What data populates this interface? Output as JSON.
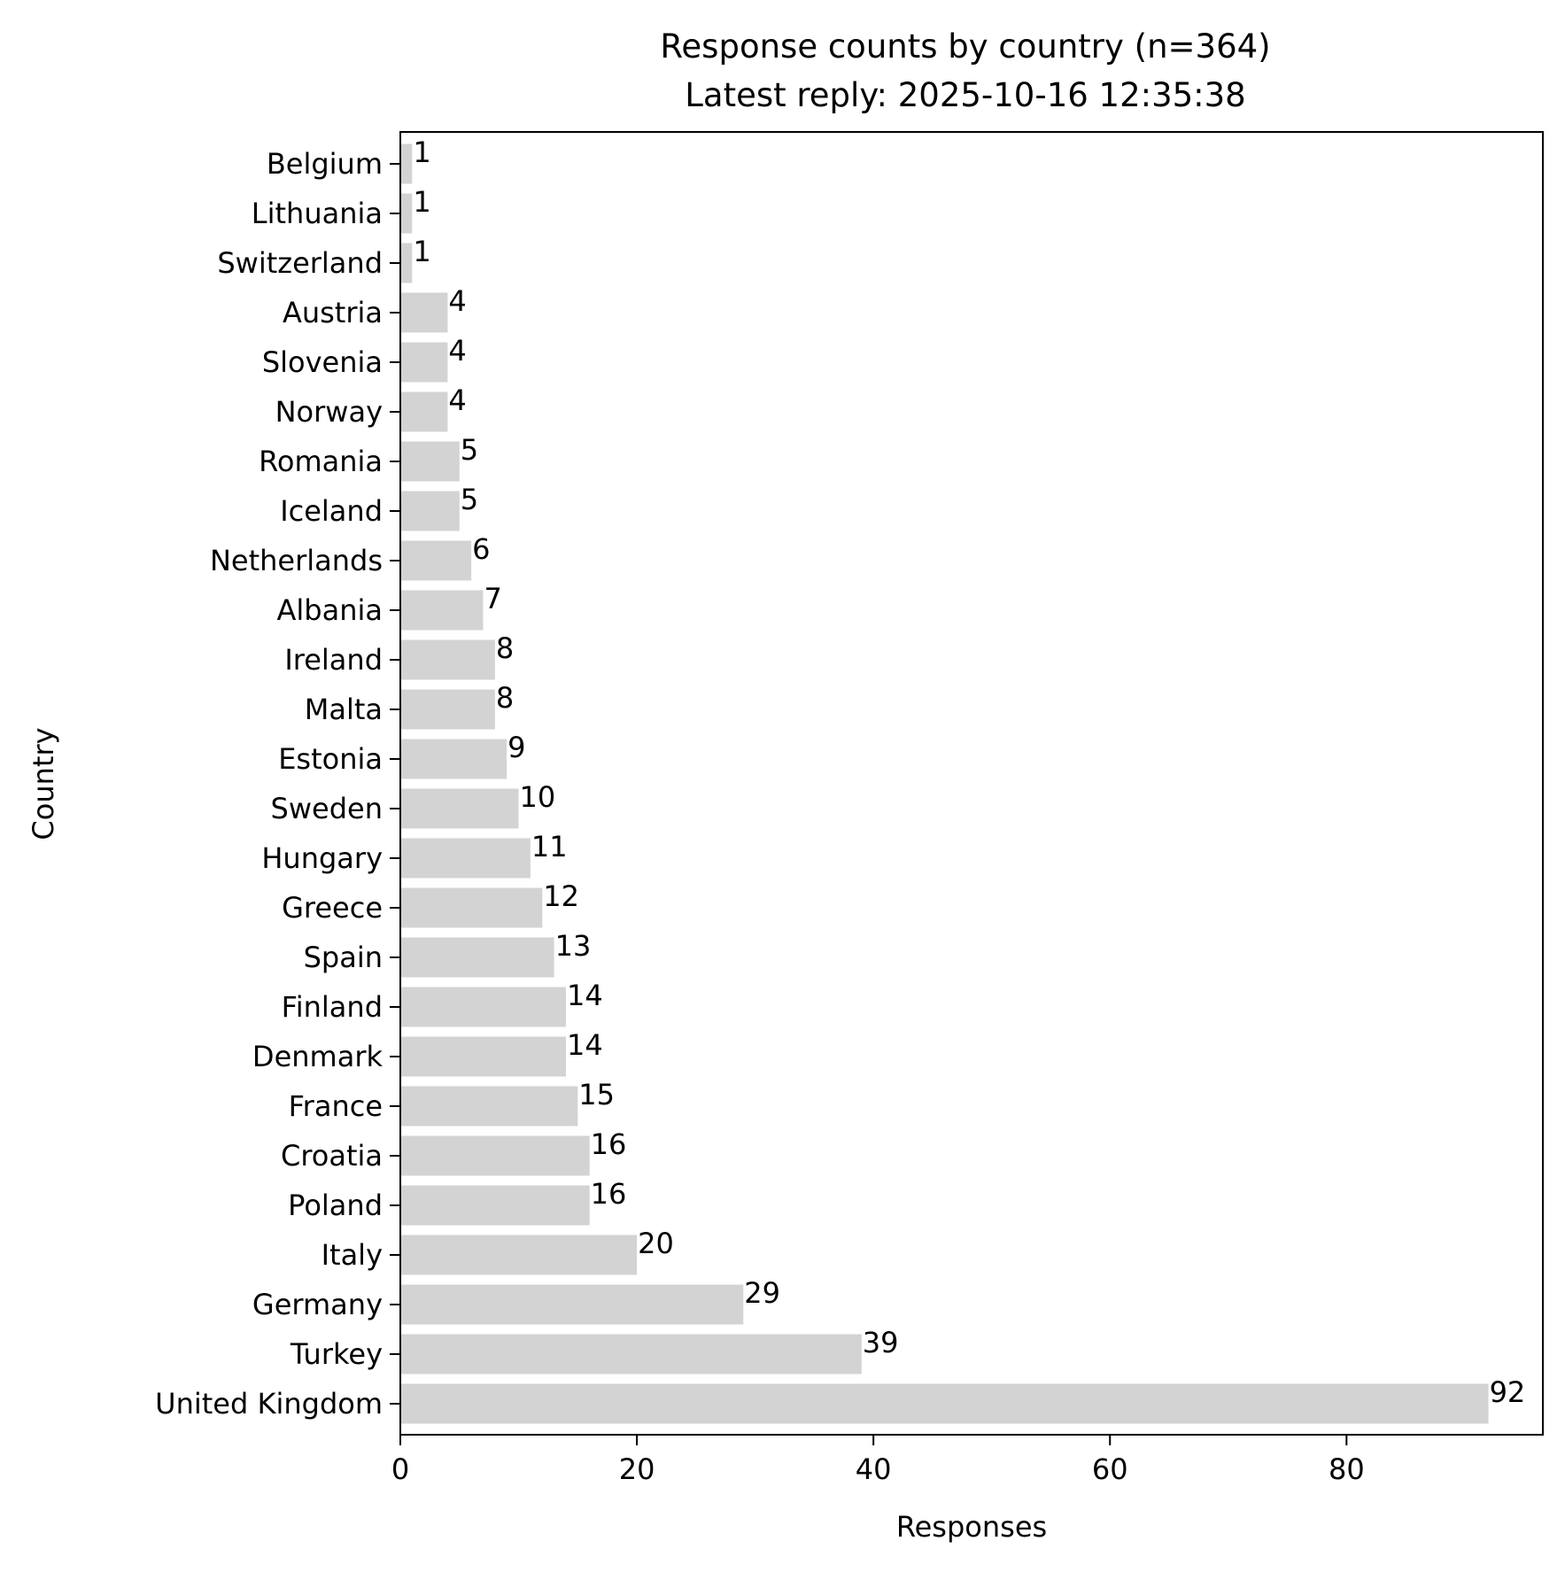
{
  "chart_data": {
    "type": "bar",
    "orientation": "horizontal",
    "title": "Response counts by country (n=364)",
    "subtitle": "Latest reply: 2025-10-16 12:35:38",
    "xlabel": "Responses",
    "ylabel": "Country",
    "xlim": [
      0,
      96.6
    ],
    "xticks": [
      0,
      20,
      40,
      60,
      80
    ],
    "grid": false,
    "legend": "none",
    "bar_color": "#d3d3d3",
    "categories": [
      "Belgium",
      "Lithuania",
      "Switzerland",
      "Austria",
      "Slovenia",
      "Norway",
      "Romania",
      "Iceland",
      "Netherlands",
      "Albania",
      "Ireland",
      "Malta",
      "Estonia",
      "Sweden",
      "Hungary",
      "Greece",
      "Spain",
      "Finland",
      "Denmark",
      "France",
      "Croatia",
      "Poland",
      "Italy",
      "Germany",
      "Turkey",
      "United Kingdom"
    ],
    "values": [
      1,
      1,
      1,
      4,
      4,
      4,
      5,
      5,
      6,
      7,
      8,
      8,
      9,
      10,
      11,
      12,
      13,
      14,
      14,
      15,
      16,
      16,
      20,
      29,
      39,
      92
    ]
  }
}
